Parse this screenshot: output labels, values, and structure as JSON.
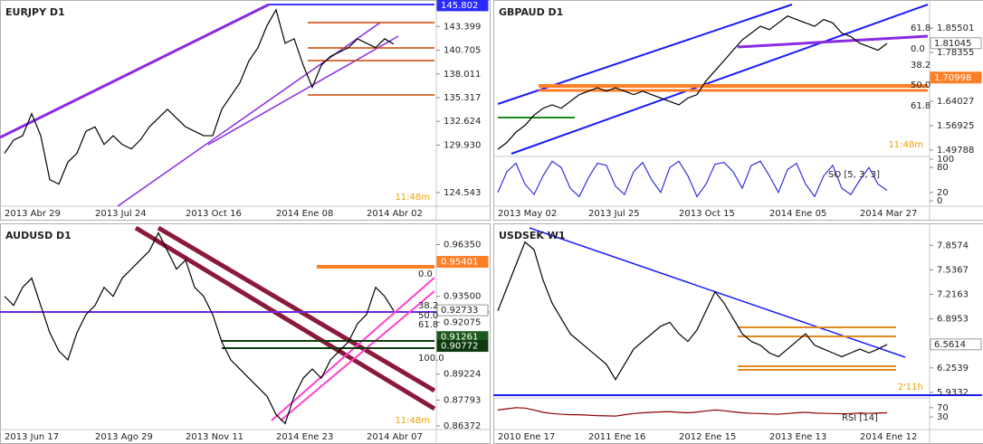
{
  "chart_data": [
    {
      "type": "line",
      "title": "EURJPY D1",
      "color": "#000000",
      "categories": [
        "2013 Abr 29",
        null,
        null,
        null,
        null,
        null,
        null,
        null,
        null,
        null,
        "2013 Jul 24",
        null,
        null,
        null,
        null,
        null,
        null,
        null,
        null,
        null,
        "2013 Oct 16",
        null,
        null,
        null,
        null,
        null,
        null,
        null,
        null,
        null,
        "2014 Ene 08",
        null,
        null,
        null,
        null,
        null,
        null,
        null,
        null,
        null,
        "2014 Abr 02",
        null,
        null,
        null
      ],
      "values": [
        129,
        130.5,
        131,
        133.5,
        131,
        126,
        125.5,
        128,
        129,
        131.5,
        132,
        130,
        131,
        130,
        129.5,
        130.5,
        132,
        133,
        134,
        133,
        132,
        131.5,
        131,
        131,
        134,
        135.5,
        137,
        139.5,
        141,
        143.5,
        145.3,
        141.5,
        142,
        139,
        136.5,
        139,
        140,
        140.5,
        141,
        142,
        141.5,
        141,
        142,
        141.4
      ],
      "ylim": [
        123.2,
        146.1
      ],
      "yticks": [
        143.399,
        140.705,
        138.011,
        135.317,
        132.624,
        {
          "value": 129.93,
          "label": "129.930"
        },
        124.543
      ],
      "price_labels": [
        {
          "value": 145.802,
          "color": "#2b2bff"
        }
      ],
      "timer": "11:48m"
    },
    {
      "type": "line",
      "title": "GBPAUD D1",
      "color": "#000000",
      "categories": [
        "2013 May 02",
        null,
        null,
        null,
        null,
        null,
        null,
        null,
        null,
        null,
        "2013 Jul 25",
        null,
        null,
        null,
        null,
        null,
        null,
        null,
        null,
        null,
        "2013 Oct 15",
        null,
        null,
        null,
        null,
        null,
        null,
        null,
        null,
        null,
        "2014 Ene 05",
        null,
        null,
        null,
        null,
        null,
        null,
        null,
        null,
        null,
        "2014 Mar 27",
        null,
        null,
        null
      ],
      "values": [
        1.5,
        1.52,
        1.55,
        1.57,
        1.6,
        1.62,
        1.63,
        1.62,
        1.64,
        1.66,
        1.67,
        1.68,
        1.67,
        1.68,
        1.67,
        1.66,
        1.67,
        1.66,
        1.65,
        1.64,
        1.63,
        1.65,
        1.66,
        1.7,
        1.73,
        1.76,
        1.79,
        1.82,
        1.84,
        1.86,
        1.85,
        1.87,
        1.89,
        1.88,
        1.87,
        1.86,
        1.88,
        1.87,
        1.84,
        1.83,
        1.81,
        1.8,
        1.79,
        1.81
      ],
      "ylim": [
        1.487,
        1.929
      ],
      "yticks": [
        1.85501,
        1.78355,
        1.64027,
        1.56925,
        1.49788
      ],
      "price_labels": [
        {
          "value": 1.81045,
          "color": "#9a9a9a"
        },
        {
          "value": 1.70998,
          "color": "#ff7f27"
        }
      ],
      "annotations": [
        "61.8",
        "0.0",
        "38.2",
        "50.0",
        "61.8"
      ],
      "timer": "11:48m",
      "indicator": {
        "name": "SO [5, 3, 3]",
        "color": "#3030e0",
        "ylim": [
          0,
          100
        ],
        "yticks": [
          100,
          80,
          20,
          0
        ],
        "values": [
          20,
          70,
          90,
          40,
          15,
          60,
          95,
          80,
          30,
          10,
          55,
          90,
          85,
          35,
          15,
          70,
          92,
          50,
          20,
          80,
          95,
          60,
          10,
          40,
          88,
          92,
          70,
          30,
          85,
          95,
          60,
          20,
          75,
          90,
          40,
          10,
          60,
          85,
          30,
          15,
          50,
          80,
          40,
          25
        ]
      }
    },
    {
      "type": "line",
      "title": "AUDUSD D1",
      "color": "#000000",
      "categories": [
        "2013 Jun 17",
        null,
        null,
        null,
        null,
        null,
        null,
        null,
        null,
        null,
        "2013 Ago 29",
        null,
        null,
        null,
        null,
        null,
        null,
        null,
        null,
        null,
        "2013 Nov 11",
        null,
        null,
        null,
        null,
        null,
        null,
        null,
        null,
        null,
        "2014 Ene 23",
        null,
        null,
        null,
        null,
        null,
        null,
        null,
        null,
        null,
        "2014 Abr 07",
        null,
        null,
        null
      ],
      "values": [
        0.935,
        0.93,
        0.94,
        0.945,
        0.93,
        0.915,
        0.905,
        0.9,
        0.915,
        0.925,
        0.93,
        0.94,
        0.935,
        0.945,
        0.95,
        0.955,
        0.96,
        0.97,
        0.96,
        0.95,
        0.955,
        0.94,
        0.935,
        0.925,
        0.91,
        0.9,
        0.895,
        0.89,
        0.885,
        0.88,
        0.87,
        0.865,
        0.88,
        0.89,
        0.895,
        0.89,
        0.9,
        0.905,
        0.91,
        0.92,
        0.925,
        0.94,
        0.935,
        0.927
      ],
      "ylim": [
        0.8627,
        0.9737
      ],
      "yticks": [
        {
          "value": 0.9635,
          "label": "0.96350"
        },
        {
          "value": 0.935,
          "label": "0.93500"
        },
        0.92075,
        0.89224,
        0.87793,
        0.86372
      ],
      "price_labels": [
        {
          "value": 0.95401,
          "color": "#ff7f27"
        },
        {
          "value": 0.92733,
          "color": "#9a9a9a"
        },
        {
          "value": 0.91261,
          "color": "#1e5a1e"
        },
        {
          "value": 0.90772,
          "color": "#0f3a0f"
        }
      ],
      "annotations": [
        "0.0",
        "38.2",
        "50.0",
        "61.8",
        "100.0"
      ],
      "timer": "11:48m"
    },
    {
      "type": "line",
      "title": "USDSEK W1",
      "color": "#000000",
      "categories": [
        "2010 Ene 17",
        null,
        null,
        null,
        null,
        null,
        null,
        null,
        null,
        null,
        "2011 Ene 16",
        null,
        null,
        null,
        null,
        null,
        null,
        null,
        null,
        null,
        "2012 Ene 15",
        null,
        null,
        null,
        null,
        null,
        null,
        null,
        null,
        null,
        "2013 Ene 13",
        null,
        null,
        null,
        null,
        null,
        null,
        null,
        null,
        null,
        "2014 Ene 12",
        null,
        null,
        null
      ],
      "values": [
        7.0,
        7.3,
        7.6,
        7.9,
        7.8,
        7.4,
        7.1,
        6.9,
        6.7,
        6.6,
        6.5,
        6.4,
        6.3,
        6.1,
        6.3,
        6.5,
        6.6,
        6.7,
        6.8,
        6.85,
        6.7,
        6.6,
        6.75,
        7.0,
        7.25,
        7.1,
        6.9,
        6.7,
        6.6,
        6.55,
        6.45,
        6.4,
        6.5,
        6.6,
        6.7,
        6.55,
        6.5,
        6.45,
        6.4,
        6.45,
        6.5,
        6.45,
        6.5,
        6.56
      ],
      "ylim": [
        5.897,
        8.109
      ],
      "yticks": [
        7.8574,
        7.5367,
        7.2163,
        6.8953,
        6.2539,
        5.9332
      ],
      "price_labels": [
        {
          "value": 6.5614,
          "color": "#9a9a9a"
        }
      ],
      "timer": "2'11h",
      "indicator": {
        "name": "RSI [14]",
        "color": "#8b0000",
        "ylim": [
          0,
          100
        ],
        "yticks": [
          70,
          30
        ],
        "values": [
          60,
          65,
          70,
          68,
          60,
          50,
          45,
          42,
          40,
          40,
          38,
          36,
          35,
          34,
          40,
          45,
          48,
          50,
          52,
          53,
          50,
          48,
          51,
          56,
          60,
          57,
          52,
          48,
          46,
          45,
          43,
          42,
          45,
          48,
          50,
          47,
          46,
          45,
          44,
          45,
          47,
          46,
          47,
          48
        ]
      }
    }
  ]
}
